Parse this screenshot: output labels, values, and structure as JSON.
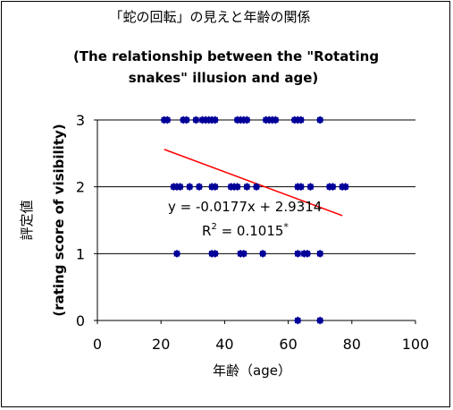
{
  "chart_data": {
    "type": "scatter",
    "title_lines": [
      "「蛇の回転」の見えと年齢の関係",
      "(The relationship between the \"Rotating",
      "snakes\" illusion and age)"
    ],
    "xlabel": "年齢（age）",
    "ylabel_lines": [
      "評定値",
      "(rating score of visibility)"
    ],
    "xlim": [
      0,
      100
    ],
    "ylim": [
      0,
      3
    ],
    "x_ticks": [
      0,
      20,
      40,
      60,
      80,
      100
    ],
    "y_ticks": [
      0,
      1,
      2,
      3
    ],
    "grid": "horizontal",
    "point_color": "#000099",
    "series": [
      {
        "points": [
          {
            "x": 21,
            "y": 3
          },
          {
            "x": 22,
            "y": 3
          },
          {
            "x": 27,
            "y": 3
          },
          {
            "x": 28,
            "y": 3
          },
          {
            "x": 31,
            "y": 3
          },
          {
            "x": 33,
            "y": 3
          },
          {
            "x": 34,
            "y": 3
          },
          {
            "x": 35,
            "y": 3
          },
          {
            "x": 36,
            "y": 3
          },
          {
            "x": 37,
            "y": 3
          },
          {
            "x": 44,
            "y": 3
          },
          {
            "x": 45,
            "y": 3
          },
          {
            "x": 46,
            "y": 3
          },
          {
            "x": 47,
            "y": 3
          },
          {
            "x": 53,
            "y": 3
          },
          {
            "x": 54,
            "y": 3
          },
          {
            "x": 55,
            "y": 3
          },
          {
            "x": 56,
            "y": 3
          },
          {
            "x": 62,
            "y": 3
          },
          {
            "x": 63,
            "y": 3
          },
          {
            "x": 64,
            "y": 3
          },
          {
            "x": 70,
            "y": 3
          },
          {
            "x": 24,
            "y": 2
          },
          {
            "x": 25,
            "y": 2
          },
          {
            "x": 26,
            "y": 2
          },
          {
            "x": 29,
            "y": 2
          },
          {
            "x": 32,
            "y": 2
          },
          {
            "x": 36,
            "y": 2
          },
          {
            "x": 37,
            "y": 2
          },
          {
            "x": 42,
            "y": 2
          },
          {
            "x": 43,
            "y": 2
          },
          {
            "x": 44,
            "y": 2
          },
          {
            "x": 47,
            "y": 2
          },
          {
            "x": 50,
            "y": 2
          },
          {
            "x": 63,
            "y": 2
          },
          {
            "x": 64,
            "y": 2
          },
          {
            "x": 67,
            "y": 2
          },
          {
            "x": 73,
            "y": 2
          },
          {
            "x": 74,
            "y": 2
          },
          {
            "x": 77,
            "y": 2
          },
          {
            "x": 78,
            "y": 2
          },
          {
            "x": 25,
            "y": 1
          },
          {
            "x": 36,
            "y": 1
          },
          {
            "x": 37,
            "y": 1
          },
          {
            "x": 45,
            "y": 1
          },
          {
            "x": 46,
            "y": 1
          },
          {
            "x": 52,
            "y": 1
          },
          {
            "x": 63,
            "y": 1
          },
          {
            "x": 65,
            "y": 1
          },
          {
            "x": 66,
            "y": 1
          },
          {
            "x": 70,
            "y": 1
          },
          {
            "x": 63,
            "y": 0
          },
          {
            "x": 70,
            "y": 0
          }
        ]
      }
    ],
    "trendline": {
      "slope": -0.0177,
      "intercept": 2.9314,
      "x_range": [
        21,
        77
      ],
      "color": "#ff0000",
      "equation": "y = -0.0177x + 2.9314",
      "r2_prefix": "R",
      "r2_sup": "2",
      "r2_value": " = 0.1015",
      "r2_mark": "*"
    }
  }
}
